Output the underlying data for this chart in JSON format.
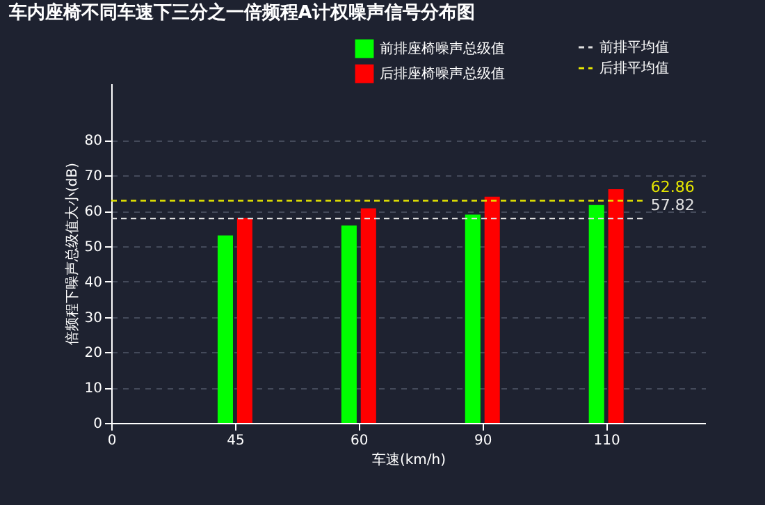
{
  "chart_data": {
    "type": "bar",
    "title": "车内座椅不同车速下三分之一倍频程A计权噪声信号分布图",
    "xlabel": "车速(km/h)",
    "ylabel": "倍频程下噪声总级值大小(dB)",
    "categories": [
      "0",
      "45",
      "60",
      "90",
      "110"
    ],
    "series": [
      {
        "name": "前排座椅噪声总级值",
        "color": "#00ff00",
        "values": [
          null,
          53,
          55.8,
          58.9,
          61.6
        ]
      },
      {
        "name": "后排座椅噪声总级值",
        "color": "#ff0000",
        "values": [
          null,
          58,
          60.7,
          64,
          66.1
        ]
      }
    ],
    "ref_lines": [
      {
        "axis": "y",
        "value": 57.82,
        "label": "前排平均值",
        "color": "#e0e0e0",
        "line_style": "dashed"
      },
      {
        "axis": "y",
        "value": 62.86,
        "label": "后排平均值",
        "color": "#e6e600",
        "line_style": "dashed"
      }
    ],
    "annotations": [
      "57.82",
      "62.86"
    ],
    "ylim": [
      0,
      96
    ],
    "yticks": [
      0,
      10,
      20,
      30,
      40,
      50,
      60,
      70,
      80
    ],
    "grid": "y",
    "legend": "top right"
  }
}
